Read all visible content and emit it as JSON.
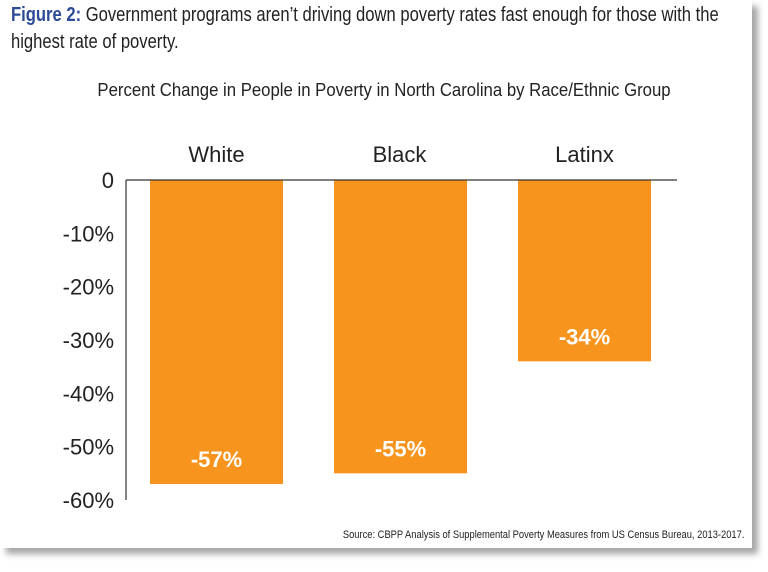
{
  "figure": {
    "label": "Figure 2:",
    "caption": "Government programs aren’t driving down poverty rates fast enough for those with the highest rate of poverty."
  },
  "source": "Source: CBPP Analysis of Supplemental Poverty Measures from US Census Bureau, 2013-2017.",
  "chart_data": {
    "type": "bar",
    "title": "Percent Change in People in Poverty in North Carolina by Race/Ethnic Group",
    "categories": [
      "White",
      "Black",
      "Latinx"
    ],
    "values": [
      -57,
      -55,
      -34
    ],
    "data_labels": [
      "-57%",
      "-55%",
      "-34%"
    ],
    "ylim": [
      -60,
      0
    ],
    "yticks": [
      0,
      -10,
      -20,
      -30,
      -40,
      -50,
      -60
    ],
    "ytick_labels": [
      "0",
      "-10%",
      "-20%",
      "-30%",
      "-40%",
      "-50%",
      "-60%"
    ],
    "grid": false,
    "bar_color": "#f7941d",
    "label_color": "#ffffff",
    "title_accent_color": "#2c4a96"
  }
}
